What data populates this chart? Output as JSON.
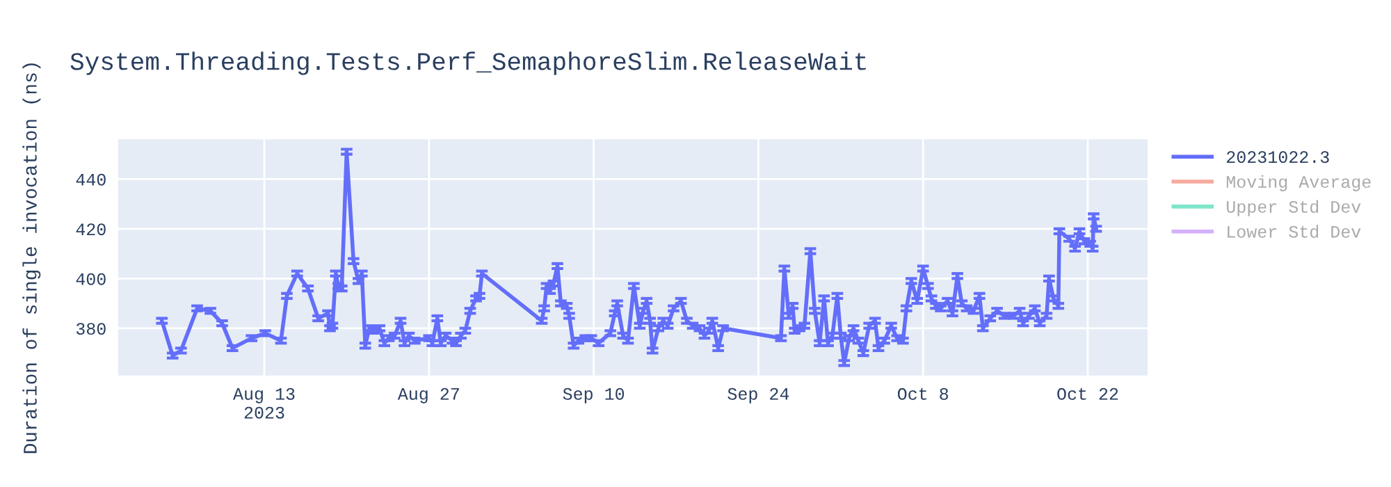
{
  "chart_data": {
    "type": "line",
    "title": "System.Threading.Tests.Perf_SemaphoreSlim.ReleaseWait",
    "ylabel": "Duration of single invocation (ns)",
    "x": [
      "2023-08-04T07:00",
      "2023-08-05T05:00",
      "2023-08-05T22:00",
      "2023-08-07T07:00",
      "2023-08-08T10:00",
      "2023-08-09T10:00",
      "2023-08-10T07:00",
      "2023-08-11T22:00",
      "2023-08-13T02:00",
      "2023-08-14T10:00",
      "2023-08-14T22:00",
      "2023-08-15T19:00",
      "2023-08-16T17:00",
      "2023-08-17T14:00",
      "2023-08-18T10:00",
      "2023-08-18T14:00",
      "2023-08-18T19:00",
      "2023-08-19T02:00",
      "2023-08-19T07:00",
      "2023-08-19T14:00",
      "2023-08-20T00:00",
      "2023-08-20T14:00",
      "2023-08-21T00:00",
      "2023-08-21T07:00",
      "2023-08-21T14:00",
      "2023-08-21T22:00",
      "2023-08-22T07:00",
      "2023-08-22T19:00",
      "2023-08-23T05:00",
      "2023-08-23T14:00",
      "2023-08-24T02:00",
      "2023-08-24T14:00",
      "2023-08-24T22:00",
      "2023-08-25T07:00",
      "2023-08-25T19:00",
      "2023-08-27T00:00",
      "2023-08-27T07:00",
      "2023-08-27T17:00",
      "2023-08-28T00:00",
      "2023-08-28T10:00",
      "2023-08-29T00:00",
      "2023-08-29T07:00",
      "2023-08-29T17:00",
      "2023-08-30T02:00",
      "2023-08-30T12:00",
      "2023-08-31T00:00",
      "2023-08-31T07:00",
      "2023-08-31T12:00",
      "2023-09-05T14:00",
      "2023-09-05T19:00",
      "2023-09-06T00:00",
      "2023-09-06T07:00",
      "2023-09-06T14:00",
      "2023-09-06T22:00",
      "2023-09-07T05:00",
      "2023-09-07T17:00",
      "2023-09-07T22:00",
      "2023-09-08T07:00",
      "2023-09-08T17:00",
      "2023-09-09T07:00",
      "2023-09-09T19:00",
      "2023-09-10T10:00",
      "2023-09-11T10:00",
      "2023-09-11T19:00",
      "2023-09-12T00:00",
      "2023-09-12T12:00",
      "2023-09-12T22:00",
      "2023-09-13T10:00",
      "2023-09-13T22:00",
      "2023-09-14T05:00",
      "2023-09-14T12:00",
      "2023-09-14T19:00",
      "2023-09-15T00:00",
      "2023-09-15T12:00",
      "2023-09-15T22:00",
      "2023-09-16T07:00",
      "2023-09-16T19:00",
      "2023-09-17T10:00",
      "2023-09-17T22:00",
      "2023-09-18T10:00",
      "2023-09-19T00:00",
      "2023-09-19T10:00",
      "2023-09-19T19:00",
      "2023-09-20T02:00",
      "2023-09-20T14:00",
      "2023-09-21T00:00",
      "2023-09-25T22:00",
      "2023-09-26T05:00",
      "2023-09-26T14:00",
      "2023-09-26T22:00",
      "2023-09-27T02:00",
      "2023-09-27T12:00",
      "2023-09-27T22:00",
      "2023-09-28T10:00",
      "2023-09-28T19:00",
      "2023-09-29T05:00",
      "2023-09-29T14:00",
      "2023-09-29T22:00",
      "2023-09-30T07:00",
      "2023-09-30T17:00",
      "2023-10-01T00:00",
      "2023-10-01T07:00",
      "2023-10-01T17:00",
      "2023-10-02T02:00",
      "2023-10-02T12:00",
      "2023-10-02T22:00",
      "2023-10-03T10:00",
      "2023-10-03T22:00",
      "2023-10-04T05:00",
      "2023-10-04T17:00",
      "2023-10-05T07:00",
      "2023-10-05T19:00",
      "2023-10-06T07:00",
      "2023-10-06T14:00",
      "2023-10-07T00:00",
      "2023-10-07T12:00",
      "2023-10-08T00:00",
      "2023-10-08T10:00",
      "2023-10-08T17:00",
      "2023-10-09T02:00",
      "2023-10-09T12:00",
      "2023-10-10T02:00",
      "2023-10-10T12:00",
      "2023-10-10T22:00",
      "2023-10-11T07:00",
      "2023-10-11T17:00",
      "2023-10-12T07:00",
      "2023-10-12T19:00",
      "2023-10-13T02:00",
      "2023-10-13T17:00",
      "2023-10-14T07:00",
      "2023-10-14T22:00",
      "2023-10-15T17:00",
      "2023-10-16T05:00",
      "2023-10-16T12:00",
      "2023-10-17T00:00",
      "2023-10-17T12:00",
      "2023-10-17T22:00",
      "2023-10-18T12:00",
      "2023-10-18T17:00",
      "2023-10-19T02:00",
      "2023-10-19T12:00",
      "2023-10-19T14:00",
      "2023-10-20T10:00",
      "2023-10-20T22:00",
      "2023-10-21T07:00",
      "2023-10-21T17:00",
      "2023-10-22T05:00",
      "2023-10-22T10:00",
      "2023-10-22T12:00",
      "2023-10-22T17:00"
    ],
    "series": [
      {
        "name": "20231022.3",
        "color": "#636efa",
        "values": [
          383,
          369,
          371,
          388,
          387,
          382,
          372,
          376,
          378,
          375,
          393,
          402,
          396,
          384,
          386,
          380,
          381,
          402,
          397,
          396,
          451,
          407,
          399,
          402,
          373,
          380,
          379,
          380,
          374,
          376,
          377,
          383,
          374,
          377,
          375,
          376,
          374,
          384,
          374,
          377,
          375,
          374,
          377,
          379,
          387,
          392,
          393,
          402,
          383,
          388,
          397,
          395,
          398,
          405,
          390,
          389,
          385,
          373,
          375,
          376,
          376,
          374,
          378,
          386,
          390,
          377,
          375,
          397,
          381,
          387,
          391,
          383,
          371,
          380,
          383,
          381,
          388,
          391,
          383,
          381,
          380,
          377,
          379,
          383,
          372,
          380,
          376,
          404,
          385,
          389,
          379,
          380,
          381,
          411,
          387,
          374,
          392,
          374,
          377,
          393,
          377,
          366,
          376,
          380,
          375,
          370,
          381,
          383,
          372,
          375,
          381,
          376,
          375,
          388,
          399,
          391,
          404,
          397,
          392,
          389,
          388,
          391,
          386,
          401,
          390,
          388,
          387,
          393,
          380,
          384,
          387,
          385,
          385,
          387,
          382,
          385,
          388,
          382,
          385,
          400,
          392,
          389,
          419,
          416,
          412,
          419,
          415,
          414,
          412,
          425,
          420
        ],
        "errors": [
          1,
          1,
          1,
          1,
          1,
          1,
          1,
          1,
          1,
          1,
          1,
          1,
          1,
          1,
          1,
          1,
          1,
          1,
          1,
          1,
          1,
          1,
          1,
          1,
          1,
          1,
          1,
          1,
          1,
          1,
          1,
          1,
          1,
          1,
          1,
          1,
          1,
          1,
          1,
          1,
          1,
          1,
          1,
          1,
          1,
          1,
          1,
          1,
          1,
          1,
          1,
          1,
          1,
          1,
          1,
          1,
          1,
          1,
          1,
          1,
          1,
          1,
          1,
          1,
          1,
          1,
          1,
          1,
          1,
          1,
          1,
          1,
          1,
          1,
          1,
          1,
          1,
          1,
          1,
          1,
          1,
          1,
          1,
          1,
          1,
          1,
          1,
          1,
          1,
          1,
          1,
          1,
          1,
          1,
          1,
          1,
          1,
          1,
          1,
          1,
          1,
          1,
          1,
          1,
          1,
          1,
          1,
          1,
          1,
          1,
          1,
          1,
          1,
          1,
          1,
          1,
          1,
          1,
          1,
          1,
          1,
          1,
          1,
          1,
          1,
          1,
          1,
          1,
          1,
          1,
          1,
          1,
          1,
          1,
          1,
          1,
          1,
          1,
          1,
          1,
          1,
          1,
          1,
          1,
          1,
          1,
          1,
          1,
          1,
          1,
          1
        ]
      },
      {
        "name": "Moving Average",
        "color": "#ef553b",
        "values": [
          null,
          null,
          null,
          null,
          null,
          null,
          null,
          null,
          null,
          null,
          null,
          null,
          null,
          null,
          null,
          null,
          null,
          null,
          null,
          null,
          null,
          null,
          null,
          null,
          null,
          null,
          null,
          null,
          null,
          null,
          null,
          null,
          null,
          null,
          null,
          null,
          null,
          null,
          null,
          null,
          null,
          null,
          null,
          null,
          null,
          null,
          null,
          null,
          null,
          null,
          null,
          null,
          null,
          null,
          null,
          null,
          null,
          null,
          null,
          null,
          null,
          null,
          null,
          null,
          null,
          null,
          null,
          null,
          null,
          null,
          null,
          null,
          null,
          null,
          null,
          null,
          null,
          null,
          null,
          null,
          null,
          null,
          null,
          null,
          null,
          null,
          null,
          null,
          null,
          null,
          null,
          null,
          null,
          null,
          null,
          null,
          null,
          null,
          null,
          null,
          null,
          null,
          null,
          null,
          null,
          null,
          null,
          null,
          null,
          null,
          null,
          null,
          null,
          null,
          null,
          null,
          null,
          null,
          null,
          null,
          null,
          null,
          null,
          null,
          null,
          null,
          null,
          null,
          null,
          null,
          null,
          null,
          null,
          null,
          null,
          null,
          null,
          null,
          null,
          null,
          null,
          null,
          null,
          null,
          null,
          null,
          null,
          null,
          null,
          null,
          null
        ]
      },
      {
        "name": "Upper Std Dev",
        "color": "#00cc96",
        "values": [
          null,
          null,
          null,
          null,
          null,
          null,
          null,
          null,
          null,
          null,
          null,
          null,
          null,
          null,
          null,
          null,
          null,
          null,
          null,
          null,
          null,
          null,
          null,
          null,
          null,
          null,
          null,
          null,
          null,
          null,
          null,
          null,
          null,
          null,
          null,
          null,
          null,
          null,
          null,
          null,
          null,
          null,
          null,
          null,
          null,
          null,
          null,
          null,
          null,
          null,
          null,
          null,
          null,
          null,
          null,
          null,
          null,
          null,
          null,
          null,
          null,
          null,
          null,
          null,
          null,
          null,
          null,
          null,
          null,
          null,
          null,
          null,
          null,
          null,
          null,
          null,
          null,
          null,
          null,
          null,
          null,
          null,
          null,
          null,
          null,
          null,
          null,
          null,
          null,
          null,
          null,
          null,
          null,
          null,
          null,
          null,
          null,
          null,
          null,
          null,
          null,
          null,
          null,
          null,
          null,
          null,
          null,
          null,
          null,
          null,
          null,
          null,
          null,
          null,
          null,
          null,
          null,
          null,
          null,
          null,
          null,
          null,
          null,
          null,
          null,
          null,
          null,
          null,
          null,
          null,
          null,
          null,
          null,
          null,
          null,
          null,
          null,
          null,
          null,
          null,
          null,
          null,
          null,
          null,
          null,
          null,
          null,
          null,
          null,
          null,
          null
        ]
      },
      {
        "name": "Lower Std Dev",
        "color": "#ab63fa",
        "values": [
          null,
          null,
          null,
          null,
          null,
          null,
          null,
          null,
          null,
          null,
          null,
          null,
          null,
          null,
          null,
          null,
          null,
          null,
          null,
          null,
          null,
          null,
          null,
          null,
          null,
          null,
          null,
          null,
          null,
          null,
          null,
          null,
          null,
          null,
          null,
          null,
          null,
          null,
          null,
          null,
          null,
          null,
          null,
          null,
          null,
          null,
          null,
          null,
          null,
          null,
          null,
          null,
          null,
          null,
          null,
          null,
          null,
          null,
          null,
          null,
          null,
          null,
          null,
          null,
          null,
          null,
          null,
          null,
          null,
          null,
          null,
          null,
          null,
          null,
          null,
          null,
          null,
          null,
          null,
          null,
          null,
          null,
          null,
          null,
          null,
          null,
          null,
          null,
          null,
          null,
          null,
          null,
          null,
          null,
          null,
          null,
          null,
          null,
          null,
          null,
          null,
          null,
          null,
          null,
          null,
          null,
          null,
          null,
          null,
          null,
          null,
          null,
          null,
          null,
          null,
          null,
          null,
          null,
          null,
          null,
          null,
          null,
          null,
          null,
          null,
          null,
          null,
          null,
          null,
          null,
          null,
          null,
          null,
          null,
          null,
          null,
          null,
          null,
          null,
          null,
          null,
          null,
          null,
          null,
          null,
          null,
          null,
          null,
          null,
          null,
          null
        ]
      }
    ],
    "xlim": [
      "2023-07-31T14:00",
      "2023-10-27T02:00"
    ],
    "xticks": [
      {
        "value": "2023-08-13",
        "label": "Aug 13\n2023"
      },
      {
        "value": "2023-08-27",
        "label": "Aug 27"
      },
      {
        "value": "2023-09-10",
        "label": "Sep 10"
      },
      {
        "value": "2023-09-24",
        "label": "Sep 24"
      },
      {
        "value": "2023-10-08",
        "label": "Oct 8"
      },
      {
        "value": "2023-10-22",
        "label": "Oct 22"
      }
    ],
    "ylim": [
      361,
      456
    ],
    "yticks": [
      380,
      400,
      420,
      440
    ],
    "grid": true,
    "legend": "top right",
    "marker": "none",
    "line_style": "solid"
  }
}
